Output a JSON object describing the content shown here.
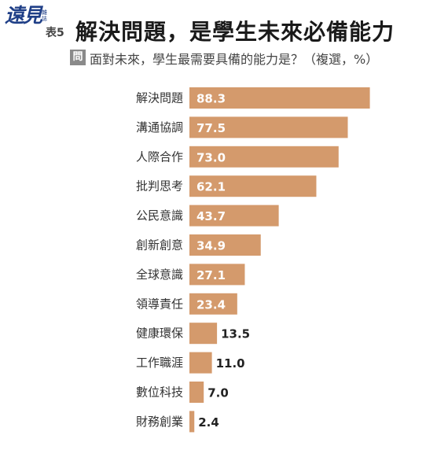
{
  "logo": {
    "main": "遠見",
    "sub": "雜誌"
  },
  "table_number": "表5",
  "title": "解決問題，是學生未來必備能力",
  "question_badge": "問",
  "question": "面對未來，學生最需要具備的能力是？（複選，%）",
  "colors": {
    "bar": "#d49a6c",
    "inside_label": "#ffffff",
    "outside_label": "#222222"
  },
  "chart_data": {
    "type": "bar",
    "orientation": "horizontal",
    "categories": [
      "解決問題",
      "溝通協調",
      "人際合作",
      "批判思考",
      "公民意識",
      "創新創意",
      "全球意識",
      "領導責任",
      "健康環保",
      "工作職涯",
      "數位科技",
      "財務創業"
    ],
    "values": [
      88.3,
      77.5,
      73.0,
      62.1,
      43.7,
      34.9,
      27.1,
      23.4,
      13.5,
      11.0,
      7.0,
      2.4
    ],
    "value_labels": [
      "88.3",
      "77.5",
      "73.0",
      "62.1",
      "43.7",
      "34.9",
      "27.1",
      "23.4",
      "13.5",
      "11.0",
      "7.0",
      "2.4"
    ],
    "unit": "%",
    "xlim": [
      0,
      100
    ],
    "grid": false,
    "title": "解決問題，是學生未來必備能力"
  }
}
